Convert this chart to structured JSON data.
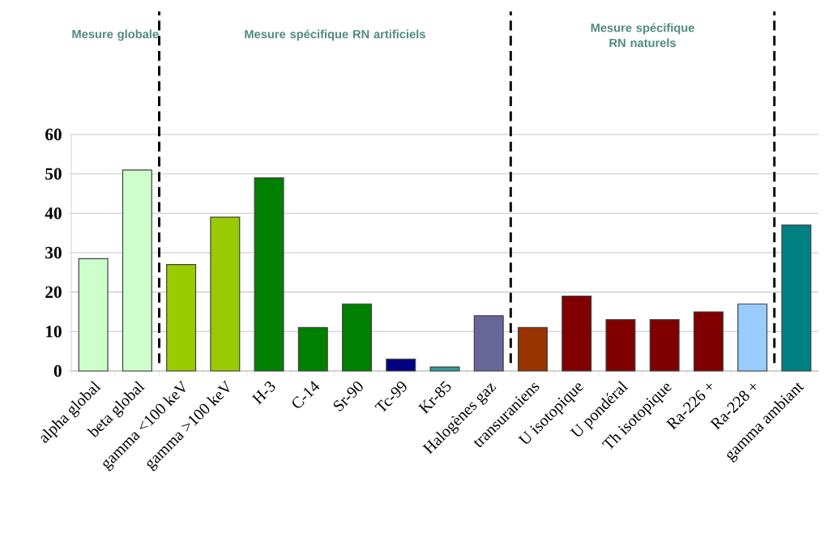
{
  "chart_data": {
    "type": "bar",
    "categories": [
      "alpha global",
      "beta global",
      "gamma <100 keV",
      "gamma >100 keV",
      "H-3",
      "C-14",
      "Sr-90",
      "Tc-99",
      "Kr-85",
      "Halogènes gaz",
      "transuraniens",
      "U isotopique",
      "U pondéral",
      "Th isotopique",
      "Ra-226 +",
      "Ra-228 +",
      "gamma ambiant"
    ],
    "values": [
      28.5,
      51,
      27,
      39,
      49,
      11,
      17,
      3,
      1,
      14,
      11,
      19,
      13,
      13,
      15,
      17,
      37
    ],
    "colors": [
      "#ccffcc",
      "#ccffcc",
      "#99cc00",
      "#99cc00",
      "#008000",
      "#008000",
      "#008000",
      "#000080",
      "#339999",
      "#666699",
      "#993300",
      "#800000",
      "#800000",
      "#800000",
      "#800000",
      "#99ccff",
      "#008080"
    ],
    "ylim": [
      0,
      60
    ],
    "yticks": [
      0,
      10,
      20,
      30,
      40,
      50,
      60
    ],
    "grid": "y",
    "annotations": [
      "Mesure globale",
      "Mesure spécifique  RN artificiels",
      "Mesure spécifique RN naturels"
    ]
  }
}
